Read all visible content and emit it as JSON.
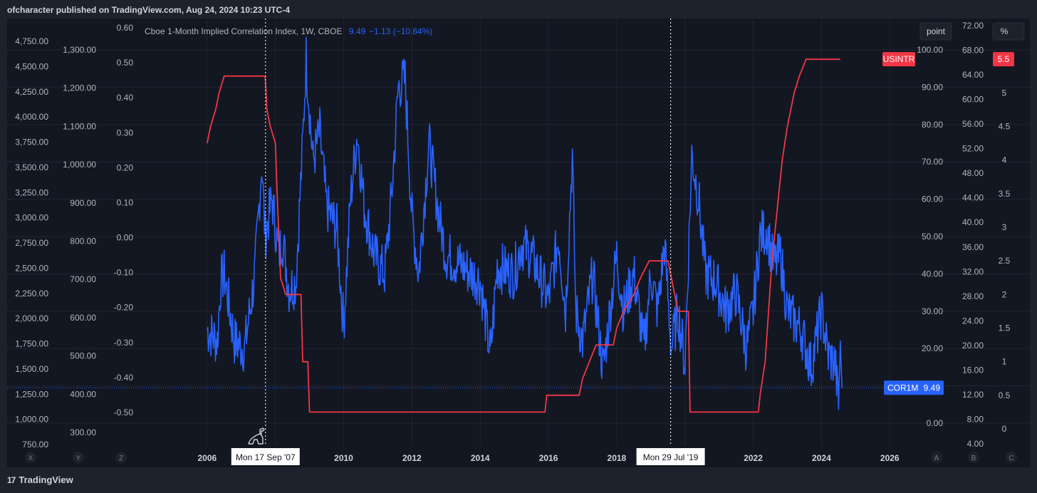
{
  "header": {
    "caption": "ofcharacter published on TradingView.com, Aug 24, 2024 10:23 UTC-4"
  },
  "footer": {
    "brand": "TradingView",
    "logo_glyph": "17"
  },
  "buttons": {
    "point": "point",
    "percent": "%"
  },
  "axis_buttons": [
    "X",
    "Y",
    "Z",
    "A",
    "B",
    "C"
  ],
  "colors": {
    "background": "#131722",
    "frame": "#1e222d",
    "grid": "#1f2530",
    "cor1m": "#2962ff",
    "usintr": "#f23645",
    "text": "#b2b5be"
  },
  "chart_data": {
    "type": "line",
    "legend": {
      "title": "Cboe 1-Month Implied Correlation Index, 1W, CBOE",
      "value": "9.49",
      "change": "−1.13 (−10.64%)"
    },
    "x_axis": {
      "range": [
        2004.0,
        2026.6
      ],
      "ticks": [
        "2006",
        "2008",
        "2010",
        "2012",
        "2014",
        "2016",
        "2018",
        "2020",
        "2022",
        "2024",
        "2026"
      ]
    },
    "crosshair_labels": [
      {
        "x": 2007.71,
        "label": "Mon 17 Sep '07"
      },
      {
        "x": 2019.58,
        "label": "Mon 29 Jul '19"
      }
    ],
    "left_axes": [
      {
        "ticks": [
          "4,750.00",
          "4,500.00",
          "4,250.00",
          "4,000.00",
          "3,750.00",
          "3,500.00",
          "3,250.00",
          "3,000.00",
          "2,750.00",
          "2,500.00",
          "2,250.00",
          "2,000.00",
          "1,750.00",
          "1,500.00",
          "1,250.00",
          "1,000.00",
          "750.00"
        ]
      },
      {
        "ticks": [
          "1,300.00",
          "1,200.00",
          "1,100.00",
          "1,000.00",
          "900.00",
          "800.00",
          "700.00",
          "600.00",
          "500.00",
          "400.00",
          "300.00"
        ]
      },
      {
        "ticks": [
          "0.60",
          "0.50",
          "0.40",
          "0.30",
          "0.20",
          "0.10",
          "0.00",
          "-0.10",
          "-0.20",
          "-0.30",
          "-0.40",
          "-0.50"
        ]
      }
    ],
    "right_axes": [
      {
        "name": "COR1M",
        "range": [
          -2,
          102
        ],
        "ticks": [
          "100.00",
          "90.00",
          "80.00",
          "70.00",
          "60.00",
          "50.00",
          "40.00",
          "30.00",
          "20.00",
          "10.00",
          "0.00"
        ]
      },
      {
        "ticks": [
          "72.00",
          "68.00",
          "64.00",
          "60.00",
          "56.00",
          "52.00",
          "48.00",
          "44.00",
          "40.00",
          "36.00",
          "32.00",
          "28.00",
          "24.00",
          "20.00",
          "16.00",
          "12.00",
          "8.00",
          "4.00"
        ]
      },
      {
        "name": "USINTR",
        "unit": "%",
        "range": [
          -0.16,
          6.2
        ],
        "ticks": [
          "6",
          "5.5",
          "5",
          "4.5",
          "4",
          "3.5",
          "3",
          "2.5",
          "2",
          "1.5",
          "1",
          "0.5",
          "0"
        ]
      }
    ],
    "series": [
      {
        "name": "COR1M",
        "last_value": "9.49",
        "color": "#2962ff",
        "anchors": [
          [
            2006.0,
            25
          ],
          [
            2006.3,
            22
          ],
          [
            2006.4,
            38
          ],
          [
            2006.5,
            40
          ],
          [
            2006.8,
            22
          ],
          [
            2007.1,
            20
          ],
          [
            2007.4,
            40
          ],
          [
            2007.6,
            70
          ],
          [
            2007.7,
            50
          ],
          [
            2007.9,
            60
          ],
          [
            2008.1,
            45
          ],
          [
            2008.2,
            50
          ],
          [
            2008.4,
            36
          ],
          [
            2008.6,
            38
          ],
          [
            2008.8,
            75
          ],
          [
            2008.9,
            98
          ],
          [
            2009.1,
            70
          ],
          [
            2009.3,
            78
          ],
          [
            2009.5,
            58
          ],
          [
            2009.8,
            52
          ],
          [
            2010.0,
            26
          ],
          [
            2010.2,
            60
          ],
          [
            2010.4,
            78
          ],
          [
            2010.6,
            58
          ],
          [
            2010.9,
            45
          ],
          [
            2011.2,
            40
          ],
          [
            2011.4,
            60
          ],
          [
            2011.6,
            90
          ],
          [
            2011.8,
            92
          ],
          [
            2012.0,
            55
          ],
          [
            2012.2,
            40
          ],
          [
            2012.5,
            75
          ],
          [
            2012.8,
            55
          ],
          [
            2013.0,
            45
          ],
          [
            2013.5,
            42
          ],
          [
            2014.0,
            38
          ],
          [
            2014.3,
            18
          ],
          [
            2014.5,
            42
          ],
          [
            2015.0,
            40
          ],
          [
            2015.2,
            48
          ],
          [
            2015.5,
            45
          ],
          [
            2015.8,
            38
          ],
          [
            2016.0,
            33
          ],
          [
            2016.3,
            50
          ],
          [
            2016.5,
            30
          ],
          [
            2016.7,
            72
          ],
          [
            2016.8,
            30
          ],
          [
            2017.0,
            22
          ],
          [
            2017.3,
            40
          ],
          [
            2017.6,
            14
          ],
          [
            2017.8,
            30
          ],
          [
            2018.0,
            45
          ],
          [
            2018.2,
            30
          ],
          [
            2018.5,
            40
          ],
          [
            2018.8,
            20
          ],
          [
            2019.0,
            40
          ],
          [
            2019.2,
            30
          ],
          [
            2019.4,
            48
          ],
          [
            2019.6,
            20
          ],
          [
            2019.8,
            30
          ],
          [
            2020.0,
            16
          ],
          [
            2020.2,
            72
          ],
          [
            2020.4,
            60
          ],
          [
            2020.6,
            40
          ],
          [
            2020.9,
            38
          ],
          [
            2021.2,
            30
          ],
          [
            2021.5,
            35
          ],
          [
            2021.8,
            20
          ],
          [
            2022.0,
            30
          ],
          [
            2022.2,
            50
          ],
          [
            2022.4,
            52
          ],
          [
            2022.6,
            42
          ],
          [
            2022.8,
            45
          ],
          [
            2023.0,
            30
          ],
          [
            2023.4,
            25
          ],
          [
            2023.7,
            15
          ],
          [
            2024.0,
            30
          ],
          [
            2024.2,
            18
          ],
          [
            2024.4,
            16
          ],
          [
            2024.5,
            5
          ],
          [
            2024.55,
            22
          ],
          [
            2024.6,
            9.49
          ]
        ]
      },
      {
        "name": "USINTR",
        "last_value": "5.5",
        "color": "#f23645",
        "anchors": [
          [
            2006.0,
            4.25
          ],
          [
            2006.1,
            4.5
          ],
          [
            2006.25,
            4.75
          ],
          [
            2006.35,
            5.0
          ],
          [
            2006.5,
            5.25
          ],
          [
            2007.7,
            5.25
          ],
          [
            2007.75,
            4.75
          ],
          [
            2007.85,
            4.5
          ],
          [
            2008.0,
            4.25
          ],
          [
            2008.05,
            3.5
          ],
          [
            2008.15,
            2.25
          ],
          [
            2008.3,
            2.0
          ],
          [
            2008.4,
            2.0
          ],
          [
            2008.75,
            2.0
          ],
          [
            2008.8,
            1.0
          ],
          [
            2008.95,
            1.0
          ],
          [
            2009.0,
            0.25
          ],
          [
            2015.9,
            0.25
          ],
          [
            2015.95,
            0.5
          ],
          [
            2016.9,
            0.5
          ],
          [
            2017.0,
            0.75
          ],
          [
            2017.2,
            1.0
          ],
          [
            2017.4,
            1.25
          ],
          [
            2017.9,
            1.25
          ],
          [
            2018.0,
            1.5
          ],
          [
            2018.2,
            1.75
          ],
          [
            2018.5,
            2.0
          ],
          [
            2018.7,
            2.25
          ],
          [
            2018.95,
            2.5
          ],
          [
            2019.5,
            2.5
          ],
          [
            2019.6,
            2.25
          ],
          [
            2019.7,
            2.0
          ],
          [
            2019.8,
            1.75
          ],
          [
            2020.1,
            1.75
          ],
          [
            2020.15,
            0.25
          ],
          [
            2022.15,
            0.25
          ],
          [
            2022.2,
            0.5
          ],
          [
            2022.35,
            1.0
          ],
          [
            2022.45,
            1.75
          ],
          [
            2022.55,
            2.5
          ],
          [
            2022.7,
            3.25
          ],
          [
            2022.85,
            4.0
          ],
          [
            2023.0,
            4.5
          ],
          [
            2023.1,
            4.75
          ],
          [
            2023.2,
            5.0
          ],
          [
            2023.35,
            5.25
          ],
          [
            2023.55,
            5.5
          ],
          [
            2024.55,
            5.5
          ]
        ]
      }
    ]
  }
}
